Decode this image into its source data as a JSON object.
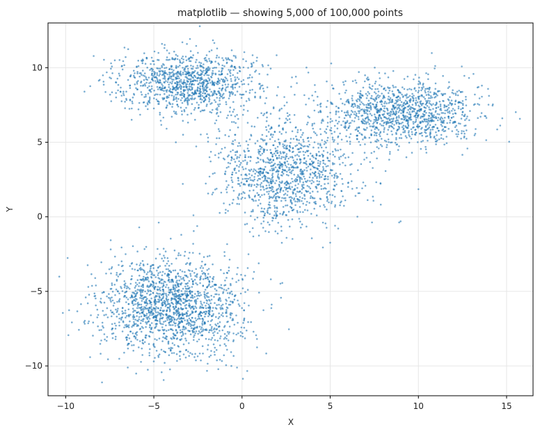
{
  "chart_data": {
    "type": "scatter",
    "title": "matplotlib — showing 5,000 of 100,000 points",
    "xlabel": "X",
    "ylabel": "Y",
    "xlim": [
      -11.0,
      16.5
    ],
    "ylim": [
      -12.0,
      13.0
    ],
    "grid": true,
    "x_ticks": [
      -10,
      -5,
      0,
      5,
      10,
      15
    ],
    "x_tick_labels": [
      "−10",
      "−5",
      "0",
      "5",
      "10",
      "15"
    ],
    "y_ticks": [
      -10,
      -5,
      0,
      5,
      10
    ],
    "y_tick_labels": [
      "−10",
      "−5",
      "0",
      "5",
      "10"
    ],
    "marker_color": "#1f77b4",
    "shown_points": 5000,
    "total_points": 100000,
    "clusters": [
      {
        "center": [
          -4.0,
          -6.0
        ],
        "spread": [
          2.0,
          1.7
        ],
        "count": 1650
      },
      {
        "center": [
          -3.0,
          9.0
        ],
        "spread": [
          2.0,
          1.0
        ],
        "count": 1050
      },
      {
        "center": [
          2.5,
          3.0
        ],
        "spread": [
          1.9,
          1.8
        ],
        "count": 1150
      },
      {
        "center": [
          9.0,
          7.0
        ],
        "spread": [
          2.2,
          1.1
        ],
        "count": 1150
      }
    ]
  }
}
